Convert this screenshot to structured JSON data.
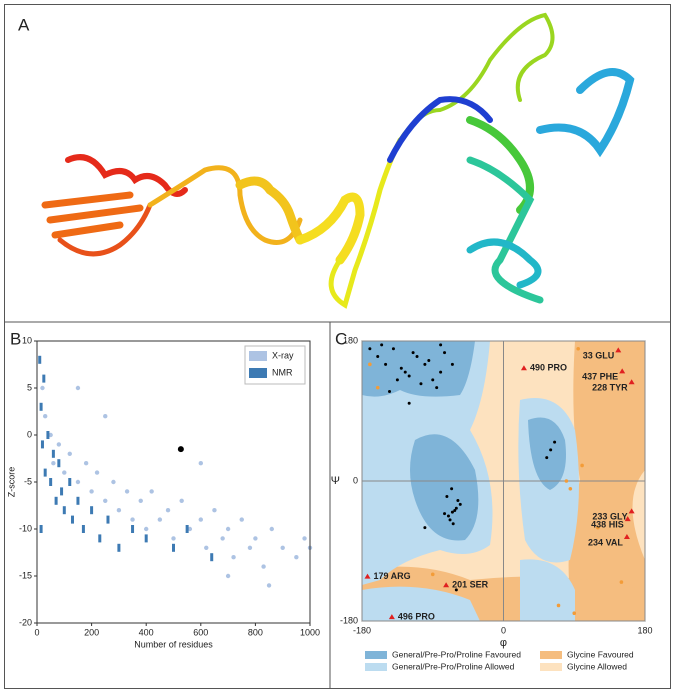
{
  "panel_labels": [
    "A",
    "B",
    "C"
  ],
  "chart_data": [
    {
      "type": "scatter",
      "xlabel": "Number of residues",
      "ylabel": "Z-score",
      "xlim": [
        0,
        1000
      ],
      "xticks": [
        0,
        200,
        400,
        600,
        800,
        1000
      ],
      "ylim": [
        -20,
        10
      ],
      "yticks": [
        -20,
        -15,
        -10,
        -5,
        0,
        5,
        10
      ],
      "legend": "upper right",
      "series": [
        {
          "name": "X-ray",
          "color": "#adc3e3",
          "x": [
            20,
            30,
            50,
            60,
            80,
            100,
            120,
            150,
            180,
            200,
            220,
            250,
            280,
            300,
            330,
            350,
            380,
            400,
            420,
            450,
            480,
            500,
            530,
            560,
            600,
            620,
            650,
            680,
            700,
            720,
            750,
            780,
            800,
            830,
            860,
            900,
            950,
            980,
            1000,
            150,
            250,
            600,
            700,
            850
          ],
          "values": [
            5,
            2,
            0,
            -3,
            -1,
            -4,
            -2,
            -5,
            -3,
            -6,
            -4,
            -7,
            -5,
            -8,
            -6,
            -9,
            -7,
            -10,
            -6,
            -9,
            -8,
            -11,
            -7,
            -10,
            -9,
            -12,
            -8,
            -11,
            -10,
            -13,
            -9,
            -12,
            -11,
            -14,
            -10,
            -12,
            -13,
            -11,
            -12,
            5,
            2,
            -3,
            -15,
            -16
          ]
        },
        {
          "name": "NMR",
          "color": "#3d7ab3",
          "x": [
            10,
            15,
            20,
            30,
            40,
            50,
            60,
            70,
            80,
            90,
            100,
            120,
            130,
            150,
            170,
            200,
            230,
            260,
            300,
            350,
            400,
            500,
            550,
            640,
            15,
            25
          ],
          "values": [
            8,
            3,
            -1,
            -4,
            0,
            -5,
            -2,
            -7,
            -3,
            -6,
            -8,
            -5,
            -9,
            -7,
            -10,
            -8,
            -11,
            -9,
            -12,
            -10,
            -11,
            -12,
            -10,
            -13,
            -10,
            6
          ]
        }
      ],
      "highlight": {
        "x": 527,
        "y": -1.5,
        "color": "#000000"
      }
    },
    {
      "type": "ramachandran",
      "xlabel": "φ",
      "ylabel": "Ψ",
      "xlim": [
        -180,
        180
      ],
      "xticks": [
        -180,
        0,
        180
      ],
      "ylim": [
        -180,
        180
      ],
      "yticks": [
        -180,
        0,
        180
      ],
      "grid": true,
      "points": {
        "color": "#000000",
        "x": [
          -65,
          -60,
          -70,
          -55,
          -75,
          -62,
          -68,
          -58,
          -72,
          -66,
          -64,
          -80,
          -90,
          -100,
          -110,
          -120,
          -130,
          -140,
          -85,
          -95,
          -105,
          -115,
          -125,
          -135,
          -150,
          -160,
          -75,
          -65,
          -145,
          -155,
          60,
          55,
          65,
          -170,
          -60,
          -100,
          -120,
          -80
        ],
        "y": [
          -40,
          -35,
          -45,
          -30,
          -42,
          -38,
          -50,
          -25,
          -20,
          -10,
          -55,
          140,
          130,
          150,
          160,
          135,
          145,
          170,
          120,
          155,
          125,
          165,
          140,
          130,
          150,
          160,
          165,
          150,
          115,
          175,
          40,
          30,
          50,
          170,
          -140,
          -60,
          100,
          175
        ]
      },
      "glycine": {
        "color": "#f39c38",
        "x": [
          -170,
          -160,
          85,
          90,
          70,
          100,
          95,
          150,
          -90,
          80,
          120
        ],
        "y": [
          150,
          120,
          -10,
          -170,
          -160,
          20,
          170,
          -130,
          -120,
          0,
          -60
        ]
      },
      "outliers": {
        "color": "#e02020",
        "labels": [
          "490 PRO",
          "33 GLU",
          "437 PHE",
          "228 TYR",
          "233 GLY",
          "438 HIS",
          "234 VAL",
          "179 ARG",
          "201 SER",
          "496 PRO"
        ],
        "x": [
          26,
          146,
          151,
          163,
          163,
          158,
          157,
          -173,
          -73,
          -142
        ],
        "y": [
          145,
          168,
          141,
          127,
          -39,
          -49,
          -72,
          -123,
          -134,
          -175
        ]
      },
      "legend_entries": [
        {
          "label": "General/Pre-Pro/Proline Favoured",
          "color": "#7fb4d8"
        },
        {
          "label": "Glycine Favoured",
          "color": "#f5bd7f"
        },
        {
          "label": "General/Pre-Pro/Proline Allowed",
          "color": "#bcdcf0"
        },
        {
          "label": "Glycine Allowed",
          "color": "#fde2bf"
        }
      ]
    }
  ]
}
